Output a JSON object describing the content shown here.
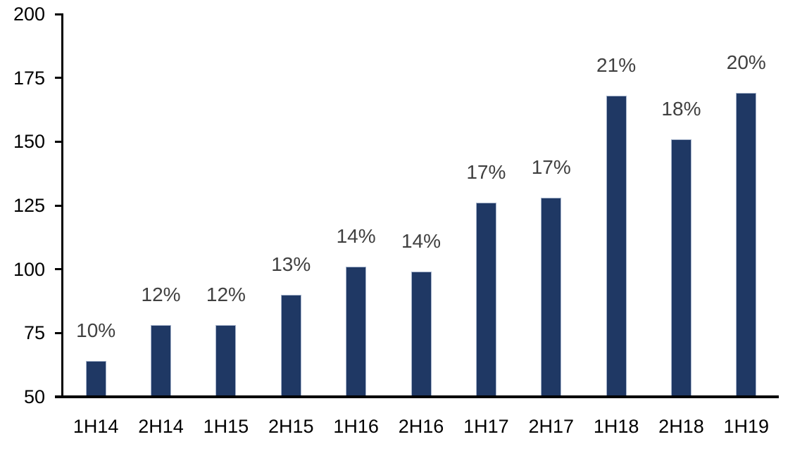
{
  "chart_data": {
    "type": "bar",
    "title": "",
    "xlabel": "",
    "ylabel": "",
    "categories": [
      "1H14",
      "2H14",
      "1H15",
      "2H15",
      "1H16",
      "2H16",
      "1H17",
      "2H17",
      "1H18",
      "2H18",
      "1H19"
    ],
    "values": [
      64,
      78,
      78,
      90,
      101,
      99,
      126,
      128,
      168,
      151,
      169
    ],
    "bar_labels": [
      "10%",
      "12%",
      "12%",
      "13%",
      "14%",
      "14%",
      "17%",
      "17%",
      "21%",
      "18%",
      "20%"
    ],
    "ylim": [
      50,
      200
    ],
    "yticks": [
      50,
      75,
      100,
      125,
      150,
      175,
      200
    ],
    "grid": false,
    "legend": "none",
    "colors": {
      "bar_fill": "#1F3864",
      "bar_border": "#A6B4CC",
      "data_label": "#404040",
      "axis": "#000000",
      "background": "#FFFFFF"
    }
  }
}
